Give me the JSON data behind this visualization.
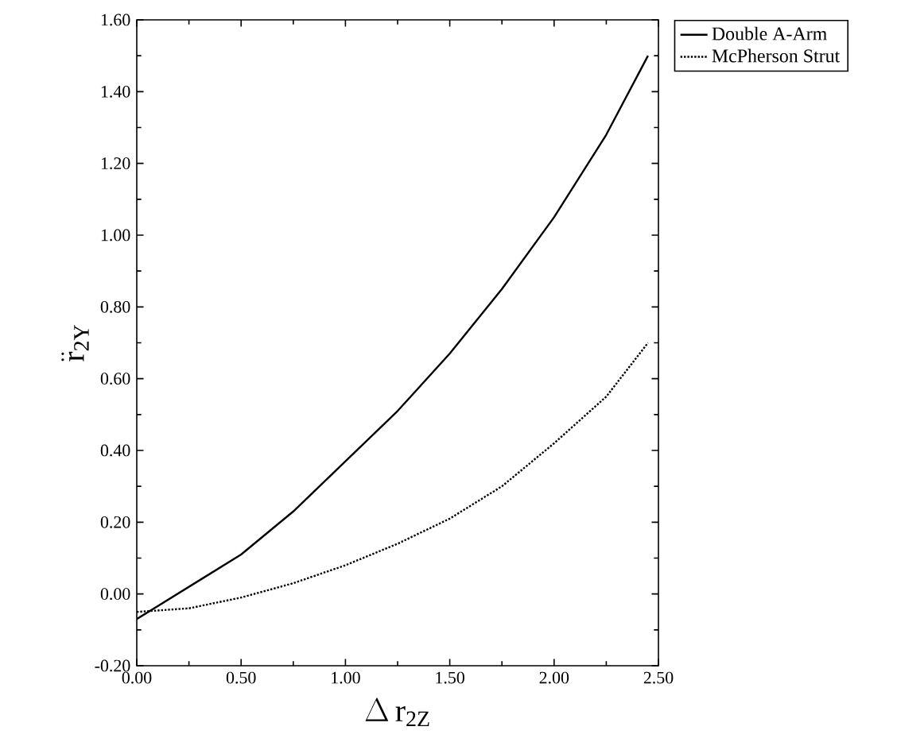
{
  "chart_data": {
    "type": "line",
    "xlabel": "\\Delta\\,\\mathrm{r}_{\\mathrm{2Z}}",
    "ylabel": "\\ddot{\\mathrm{r}}_{\\mathrm{2Y}}",
    "x": [
      0,
      0.25,
      0.5,
      0.75,
      1.0,
      1.25,
      1.5,
      1.75,
      2.0,
      2.25,
      2.45
    ],
    "series": [
      {
        "name": "Double A-Arm",
        "color": "#000000",
        "line_style": "solid",
        "values": [
          -0.07,
          0.02,
          0.11,
          0.23,
          0.37,
          0.51,
          0.67,
          0.85,
          1.05,
          1.28,
          1.5
        ]
      },
      {
        "name": "McPherson Strut",
        "color": "#000000",
        "line_style": "dotted",
        "values": [
          -0.05,
          -0.04,
          -0.01,
          0.03,
          0.08,
          0.14,
          0.21,
          0.3,
          0.42,
          0.55,
          0.7
        ]
      }
    ],
    "xlim": [
      0,
      2.5
    ],
    "ylim": [
      -0.2,
      1.6
    ],
    "xticks": [
      {
        "value": 0,
        "label": "0.00"
      },
      {
        "value": 0.5,
        "label": "0.50"
      },
      {
        "value": 1.0,
        "label": "1.00"
      },
      {
        "value": 1.5,
        "label": "1.50"
      },
      {
        "value": 2.0,
        "label": "2.00"
      },
      {
        "value": 2.5,
        "label": "2.50"
      }
    ],
    "yticks": [
      {
        "value": -0.2,
        "label": "-0.20"
      },
      {
        "value": 0,
        "label": "0.00"
      },
      {
        "value": 0.2,
        "label": "0.20"
      },
      {
        "value": 0.4,
        "label": "0.40"
      },
      {
        "value": 0.6,
        "label": "0.60"
      },
      {
        "value": 0.8,
        "label": "0.80"
      },
      {
        "value": 1.0,
        "label": "1.00"
      },
      {
        "value": 1.2,
        "label": "1.20"
      },
      {
        "value": 1.4,
        "label": "1.40"
      },
      {
        "value": 1.6,
        "label": "1.60"
      }
    ],
    "grid": false,
    "legend": "top right",
    "marker": "none"
  }
}
